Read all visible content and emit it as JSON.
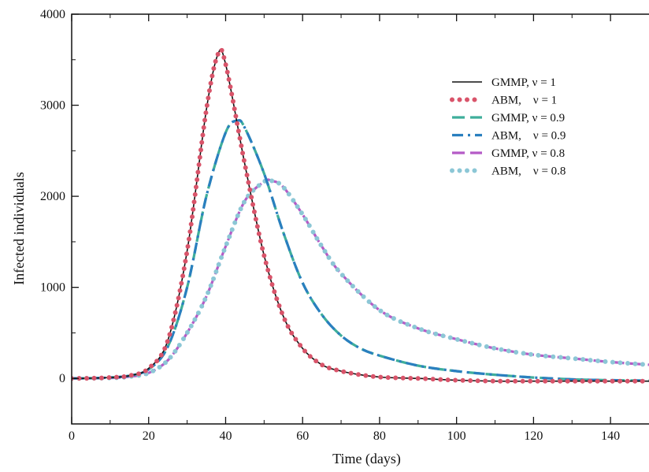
{
  "chart_data": {
    "type": "line",
    "xlabel": "Time (days)",
    "ylabel": "Infected individuals",
    "xlim": [
      0,
      150
    ],
    "ylim": [
      -500,
      4000
    ],
    "xticks": [
      0,
      20,
      40,
      60,
      80,
      100,
      120,
      140
    ],
    "yticks": [
      0,
      1000,
      2000,
      3000,
      4000
    ],
    "grid": false,
    "legend_position": "top-right",
    "series": [
      {
        "name": "GMMP, ν = 1",
        "color": "#111111",
        "style": "solid",
        "x": [
          0,
          5,
          10,
          15,
          20,
          25,
          30,
          35,
          38,
          40,
          45,
          50,
          55,
          60,
          65,
          70,
          75,
          80,
          85,
          90,
          95,
          100,
          110,
          120,
          130,
          140,
          150
        ],
        "y": [
          0,
          2,
          10,
          30,
          110,
          420,
          1400,
          2950,
          3560,
          3450,
          2350,
          1350,
          680,
          330,
          150,
          80,
          40,
          15,
          5,
          0,
          -10,
          -20,
          -30,
          -30,
          -30,
          -30,
          -30
        ]
      },
      {
        "name": "ABM,    ν = 1",
        "color": "#d9546a",
        "style": "dotted",
        "x": [
          0,
          5,
          10,
          15,
          20,
          25,
          30,
          35,
          38,
          40,
          45,
          50,
          55,
          60,
          65,
          70,
          75,
          80,
          85,
          90,
          95,
          100,
          110,
          120,
          130,
          140,
          150
        ],
        "y": [
          0,
          2,
          10,
          30,
          110,
          420,
          1400,
          2950,
          3560,
          3450,
          2350,
          1350,
          680,
          330,
          150,
          80,
          40,
          15,
          5,
          0,
          -10,
          -20,
          -30,
          -30,
          -30,
          -30,
          -30
        ]
      },
      {
        "name": "GMMP, ν = 0.9",
        "color": "#3fae9b",
        "style": "dashed",
        "x": [
          0,
          5,
          10,
          15,
          20,
          25,
          30,
          35,
          40,
          43,
          45,
          50,
          55,
          60,
          65,
          70,
          75,
          80,
          90,
          100,
          110,
          120,
          130,
          140,
          150
        ],
        "y": [
          0,
          2,
          10,
          30,
          100,
          350,
          1000,
          2000,
          2700,
          2830,
          2750,
          2250,
          1600,
          1050,
          700,
          470,
          330,
          250,
          140,
          80,
          40,
          10,
          -10,
          -20,
          -25
        ]
      },
      {
        "name": "ABM,    ν = 0.9",
        "color": "#2a7fbf",
        "style": "dashdot",
        "x": [
          0,
          5,
          10,
          15,
          20,
          25,
          30,
          35,
          40,
          43,
          45,
          50,
          55,
          60,
          65,
          70,
          75,
          80,
          90,
          100,
          110,
          120,
          130,
          140,
          150
        ],
        "y": [
          0,
          2,
          10,
          30,
          100,
          350,
          1000,
          2000,
          2700,
          2830,
          2750,
          2250,
          1600,
          1050,
          700,
          470,
          330,
          250,
          140,
          80,
          40,
          10,
          -10,
          -20,
          -25
        ]
      },
      {
        "name": "GMMP, ν = 0.8",
        "color": "#b55bc6",
        "style": "dashed",
        "x": [
          0,
          10,
          15,
          20,
          25,
          30,
          35,
          40,
          45,
          50,
          52,
          55,
          60,
          65,
          70,
          80,
          90,
          100,
          110,
          120,
          130,
          140,
          150
        ],
        "y": [
          0,
          5,
          20,
          60,
          200,
          500,
          900,
          1450,
          1950,
          2160,
          2170,
          2100,
          1800,
          1450,
          1150,
          750,
          550,
          430,
          330,
          260,
          220,
          180,
          150
        ]
      },
      {
        "name": "ABM,    ν = 0.8",
        "color": "#8cc7d6",
        "style": "dotted",
        "x": [
          0,
          10,
          15,
          20,
          25,
          30,
          35,
          40,
          45,
          50,
          52,
          55,
          60,
          65,
          70,
          80,
          90,
          100,
          110,
          120,
          130,
          140,
          150
        ],
        "y": [
          0,
          5,
          20,
          60,
          200,
          500,
          900,
          1450,
          1950,
          2160,
          2170,
          2100,
          1800,
          1450,
          1150,
          750,
          550,
          430,
          330,
          260,
          220,
          180,
          150
        ]
      }
    ]
  }
}
